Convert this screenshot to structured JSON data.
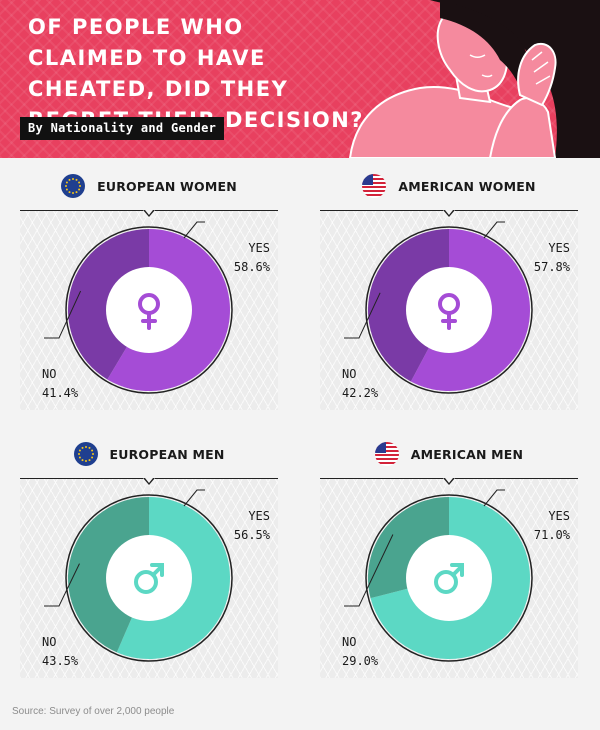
{
  "header": {
    "title": "OF PEOPLE WHO CLAIMED TO HAVE CHEATED, DID THEY REGRET THEIR DECISION?",
    "subtitle": "By Nationality and Gender"
  },
  "colors": {
    "header_bg": "#e8405f",
    "women_yes": "#a54cd6",
    "women_no": "#7a3aa6",
    "men_yes": "#5cd8c4",
    "men_no": "#4aa48f"
  },
  "chart_data": [
    {
      "type": "pie",
      "title": "EUROPEAN WOMEN",
      "flag_icon": "eu-flag-icon",
      "gender_icon": "female-icon",
      "categories": [
        "YES",
        "NO"
      ],
      "values": [
        58.6,
        41.4
      ],
      "labels": [
        "58.6%",
        "41.4%"
      ]
    },
    {
      "type": "pie",
      "title": "AMERICAN WOMEN",
      "flag_icon": "us-flag-icon",
      "gender_icon": "female-icon",
      "categories": [
        "YES",
        "NO"
      ],
      "values": [
        57.8,
        42.2
      ],
      "labels": [
        "57.8%",
        "42.2%"
      ]
    },
    {
      "type": "pie",
      "title": "EUROPEAN MEN",
      "flag_icon": "eu-flag-icon",
      "gender_icon": "male-icon",
      "categories": [
        "YES",
        "NO"
      ],
      "values": [
        56.5,
        43.5
      ],
      "labels": [
        "56.5%",
        "43.5%"
      ]
    },
    {
      "type": "pie",
      "title": "AMERICAN MEN",
      "flag_icon": "us-flag-icon",
      "gender_icon": "male-icon",
      "categories": [
        "YES",
        "NO"
      ],
      "values": [
        71.0,
        29.0
      ],
      "labels": [
        "71.0%",
        "29.0%"
      ]
    }
  ],
  "footer": {
    "source": "Source: Survey of over 2,000 people"
  }
}
